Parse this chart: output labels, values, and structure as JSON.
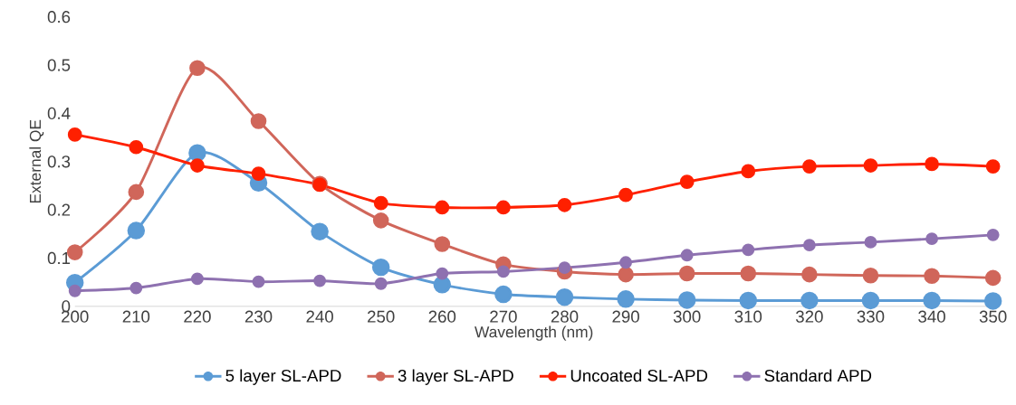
{
  "chart_data": {
    "type": "line",
    "xlabel": "Wavelength (nm)",
    "ylabel": "External QE",
    "x": [
      200,
      210,
      220,
      230,
      240,
      250,
      260,
      270,
      280,
      290,
      300,
      310,
      320,
      330,
      340,
      350
    ],
    "series": [
      {
        "name": "5 layer SL-APD",
        "color": "#5b9bd5",
        "values": [
          0.049,
          0.157,
          0.318,
          0.256,
          0.155,
          0.081,
          0.045,
          0.025,
          0.019,
          0.015,
          0.013,
          0.012,
          0.012,
          0.012,
          0.012,
          0.011
        ]
      },
      {
        "name": "3 layer SL-APD",
        "color": "#d0665a",
        "values": [
          0.112,
          0.237,
          0.494,
          0.384,
          0.254,
          0.178,
          0.129,
          0.087,
          0.072,
          0.066,
          0.068,
          0.068,
          0.066,
          0.064,
          0.063,
          0.059
        ]
      },
      {
        "name": "Uncoated SL-APD",
        "color": "#ff2000",
        "values": [
          0.356,
          0.33,
          0.292,
          0.275,
          0.252,
          0.214,
          0.205,
          0.205,
          0.21,
          0.231,
          0.258,
          0.28,
          0.29,
          0.292,
          0.295,
          0.29
        ]
      },
      {
        "name": "Standard APD",
        "color": "#8e71b0",
        "values": [
          0.032,
          0.038,
          0.057,
          0.051,
          0.053,
          0.047,
          0.068,
          0.072,
          0.08,
          0.091,
          0.106,
          0.117,
          0.127,
          0.133,
          0.14,
          0.148
        ]
      }
    ],
    "xlim": [
      200,
      350
    ],
    "xticks": [
      200,
      210,
      220,
      230,
      240,
      250,
      260,
      270,
      280,
      290,
      300,
      310,
      320,
      330,
      340,
      350
    ],
    "ylim": [
      0,
      0.6
    ],
    "yticks": [
      0,
      0.1,
      0.2,
      0.3,
      0.4,
      0.5,
      0.6
    ],
    "marker": "circle",
    "line_style": "solid",
    "legend": "bottom",
    "grid": false
  }
}
